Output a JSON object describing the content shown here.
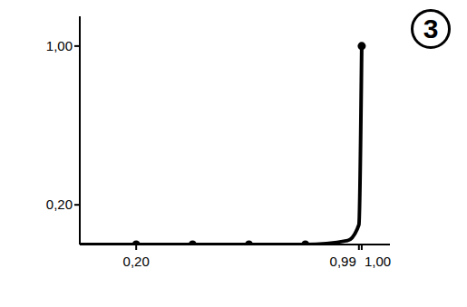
{
  "chart_data": {
    "type": "line",
    "annotation": "3",
    "x": [
      0,
      0.2,
      0.4,
      0.6,
      0.8,
      0.95,
      0.99,
      1.0
    ],
    "series": [
      {
        "type": "line",
        "color": "#000000",
        "line_style": "solid",
        "values": [
          0,
          0,
          0,
          0,
          0,
          0.02,
          0.1,
          1.0
        ]
      },
      {
        "type": "scatter",
        "color": "#000000",
        "marker": "circle",
        "values": [
          null,
          0,
          0,
          0,
          0,
          null,
          null,
          1.0
        ]
      }
    ],
    "xlim": [
      0,
      1.1
    ],
    "ylim": [
      0,
      1.15
    ],
    "xticks": [
      {
        "value": 0.2,
        "label": "0,20"
      },
      {
        "value": 0.99,
        "label": "0,99"
      },
      {
        "value": 1.0,
        "label": "1,00"
      }
    ],
    "yticks": [
      {
        "value": 0.2,
        "label": "0,20"
      },
      {
        "value": 1.0,
        "label": "1,00"
      }
    ],
    "grid": false
  }
}
